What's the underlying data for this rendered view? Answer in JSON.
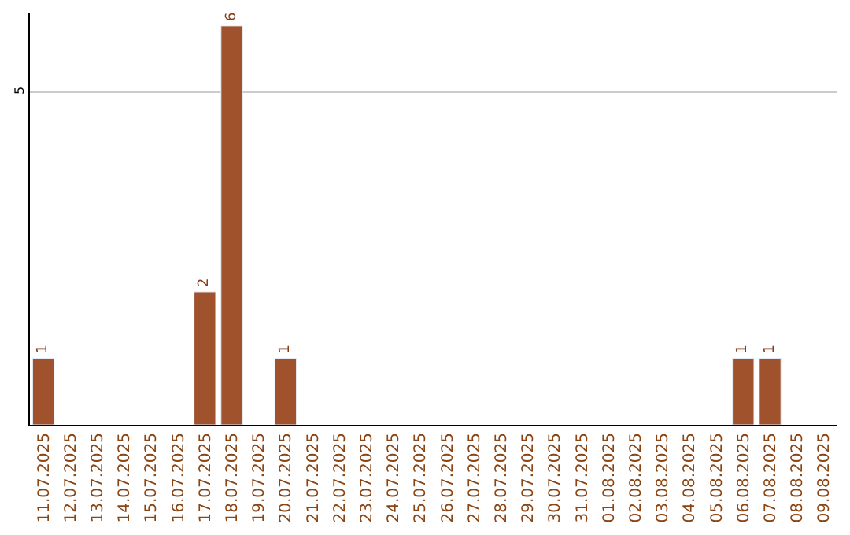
{
  "chart_data": {
    "type": "bar",
    "categories": [
      "11.07.2025",
      "12.07.2025",
      "13.07.2025",
      "14.07.2025",
      "15.07.2025",
      "16.07.2025",
      "17.07.2025",
      "18.07.2025",
      "19.07.2025",
      "20.07.2025",
      "21.07.2025",
      "22.07.2025",
      "23.07.2025",
      "24.07.2025",
      "25.07.2025",
      "26.07.2025",
      "27.07.2025",
      "28.07.2025",
      "29.07.2025",
      "30.07.2025",
      "31.07.2025",
      "01.08.2025",
      "02.08.2025",
      "03.08.2025",
      "04.08.2025",
      "05.08.2025",
      "06.08.2025",
      "07.08.2025",
      "08.08.2025",
      "09.08.2025"
    ],
    "values": [
      1,
      null,
      null,
      null,
      null,
      null,
      2,
      6,
      null,
      1,
      null,
      null,
      null,
      null,
      null,
      null,
      null,
      null,
      null,
      null,
      null,
      null,
      null,
      null,
      null,
      null,
      1,
      1,
      null,
      null
    ],
    "color": "#a0522d",
    "ylim": [
      0,
      6.2
    ],
    "yticks": [
      5
    ],
    "grid": "y",
    "legend": false,
    "value_labels": [
      "1",
      null,
      null,
      null,
      null,
      null,
      "2",
      "6",
      null,
      "1",
      null,
      null,
      null,
      null,
      null,
      null,
      null,
      null,
      null,
      null,
      null,
      null,
      null,
      null,
      null,
      null,
      "1",
      "1",
      null,
      null
    ]
  }
}
